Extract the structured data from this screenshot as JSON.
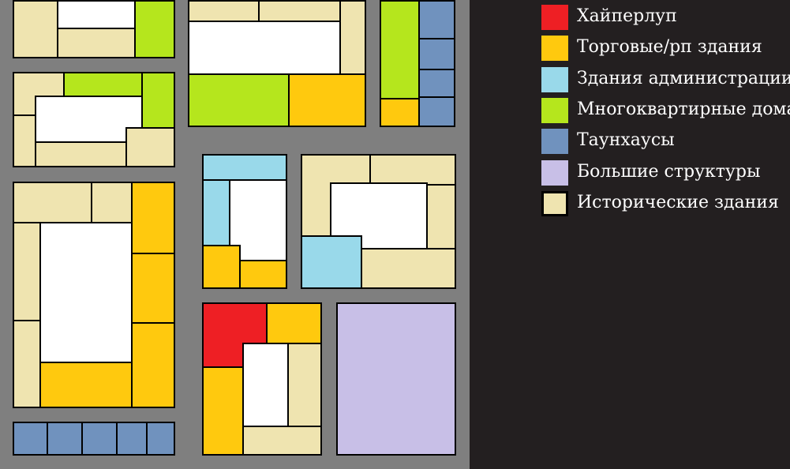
{
  "colors": {
    "hyperloop": "#ee1f24",
    "commercial": "#ffc90e",
    "administration": "#99d9ea",
    "apartments": "#b5e61d",
    "townhouses": "#7092be",
    "large": "#c8bfe7",
    "historic": "#efe4b0",
    "open": "#ffffff",
    "road": "#7f7f7f",
    "background": "#231f20"
  },
  "legend": [
    {
      "key": "hyperloop",
      "label": "Хайперлуп",
      "color": "#ee1f24"
    },
    {
      "key": "commercial",
      "label": "Торговые/рп здания",
      "color": "#ffc90e"
    },
    {
      "key": "administration",
      "label": "Здания администрации",
      "color": "#99d9ea"
    },
    {
      "key": "apartments",
      "label": "Многоквартирные дома",
      "color": "#b5e61d"
    },
    {
      "key": "townhouses",
      "label": "Таунхаусы",
      "color": "#7092be"
    },
    {
      "key": "large",
      "label": "Большие структуры",
      "color": "#c8bfe7"
    },
    {
      "key": "historic",
      "label": "Исторические здания",
      "color": "#efe4b0"
    }
  ]
}
